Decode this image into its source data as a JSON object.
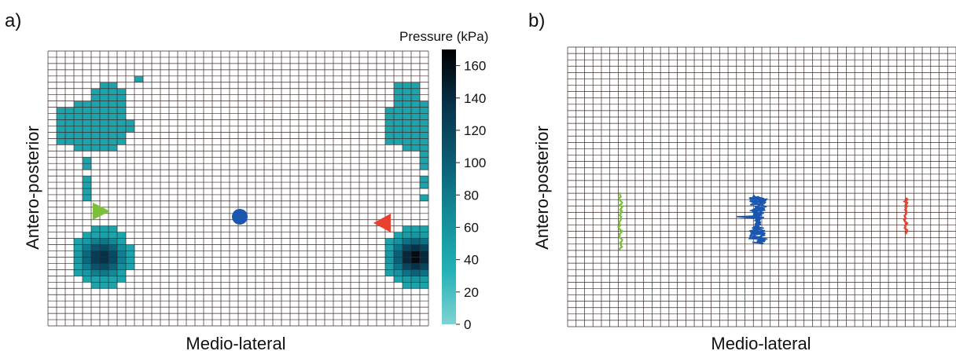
{
  "panels": {
    "a": {
      "panel_label": "a)",
      "xlabel": "Medio-lateral",
      "ylabel": "Antero-posterior"
    },
    "b": {
      "panel_label": "b)",
      "xlabel": "Medio-lateral",
      "ylabel": "Antero-posterior"
    }
  },
  "colorbar": {
    "title": "Pressure (kPa)",
    "min": 0,
    "max": 170,
    "ticks": [
      0,
      20,
      40,
      60,
      80,
      100,
      120,
      140,
      160
    ],
    "colors": [
      "#7fd3d3",
      "#21b0b5",
      "#138a98",
      "#0b5b73",
      "#07324a",
      "#000000"
    ]
  },
  "chart_data": [
    {
      "type": "heatmap",
      "panel": "a",
      "grid": {
        "cols": 44,
        "rows": 44
      },
      "xlabel": "Medio-lateral",
      "ylabel": "Antero-posterior",
      "colorbar_label": "Pressure (kPa)",
      "zlim": [
        0,
        170
      ],
      "regions": [
        {
          "name": "left foot, forefoot",
          "value_kPa": 45
        },
        {
          "name": "left foot, heel",
          "peak_kPa": 140
        },
        {
          "name": "right foot, forefoot",
          "value_kPa": 45
        },
        {
          "name": "right foot, heel",
          "peak_kPa": 165
        }
      ],
      "markers": [
        {
          "shape": "triangle-right",
          "color": "#7bbf3a"
        },
        {
          "shape": "circle",
          "color": "#1b57b0"
        },
        {
          "shape": "triangle-left",
          "color": "#e8412f"
        }
      ]
    },
    {
      "type": "line",
      "panel": "b",
      "xlabel": "Medio-lateral",
      "ylabel": "Antero-posterior",
      "series": [
        {
          "color": "#7bbf3a"
        },
        {
          "color": "#1b57b0"
        },
        {
          "color": "#e8412f"
        }
      ]
    }
  ]
}
